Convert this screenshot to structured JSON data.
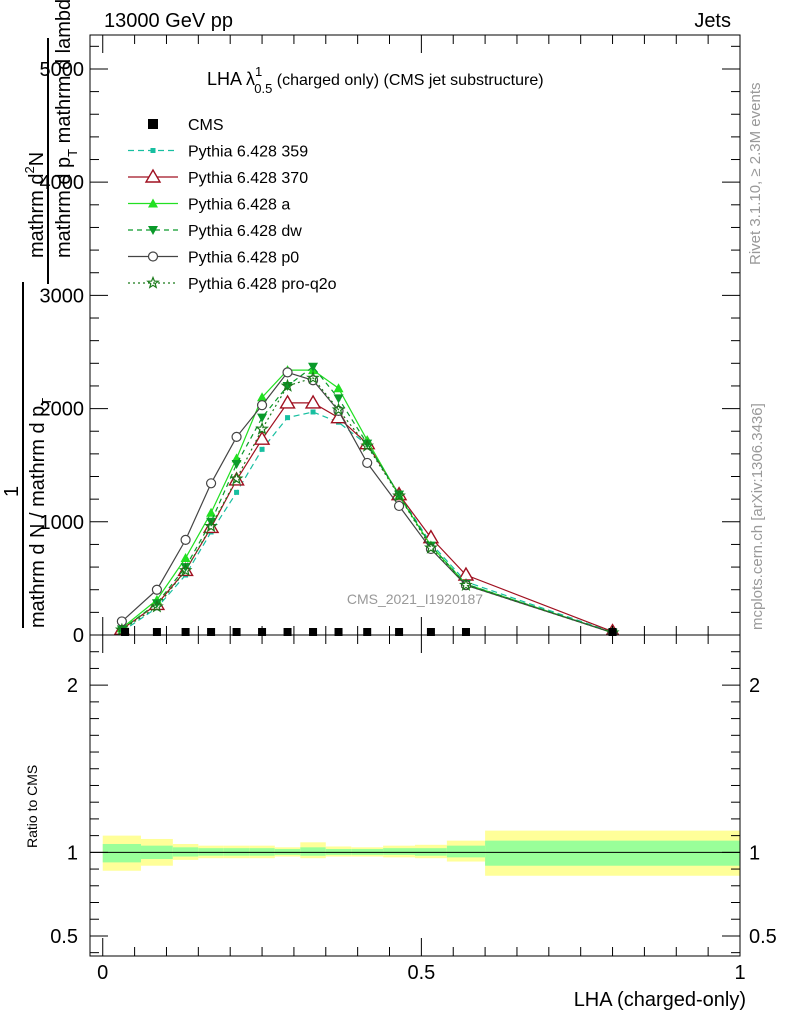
{
  "header": {
    "left": "13000 GeV pp",
    "right": "Jets"
  },
  "side_labels": {
    "rivet": "Rivet 3.1.10, ≥ 2.3M events",
    "mcplots": "mcplots.cern.ch [arXiv:1306.3436]"
  },
  "watermark": "CMS_2021_I1920187",
  "title": {
    "main": "LHA λ",
    "sup": "1",
    "sub": "0.5",
    "rest": " (charged only) (CMS jet substructure)"
  },
  "ylabel_main": {
    "top_num": "mathrm d",
    "top_num_sup": "2",
    "top_num_tail": "N",
    "top_den": "mathrm d p",
    "top_den_sub": "T",
    "top_den_tail": " mathrm d lambda",
    "bottom_num": "1",
    "bottom_den": "mathrm d N / mathrm d p",
    "bottom_den_sub": "T"
  },
  "ylabel_ratio": "Ratio to CMS",
  "xlabel": "LHA (charged-only)",
  "colors": {
    "cms": "#000000",
    "p359": "#17bfa0",
    "p370": "#a01020",
    "pa": "#22e022",
    "pdw": "#0a9a2a",
    "pp0": "#444444",
    "pq2o": "#1a7a1a",
    "band_inner": "#99ff99",
    "band_outer": "#ffff99"
  },
  "chart_data": {
    "type": "line",
    "main_ylim": [
      0,
      5300
    ],
    "main_yticks": [
      0,
      1000,
      2000,
      3000,
      4000,
      5000
    ],
    "main_yticklabels": [
      "0",
      "1000",
      "2000",
      "3000",
      "4000",
      "5000"
    ],
    "xlim": [
      -0.02,
      1.0
    ],
    "xticks": [
      0,
      0.5,
      1
    ],
    "xticklabels": [
      "0",
      "0.5",
      "1"
    ],
    "ratio_ylim": [
      0.38,
      2.3
    ],
    "ratio_yticks": [
      0.5,
      1,
      2
    ],
    "ratio_yticklabels": [
      "0.5",
      "1",
      "2"
    ],
    "cms_points": {
      "x": [
        0.035,
        0.085,
        0.13,
        0.17,
        0.21,
        0.25,
        0.29,
        0.33,
        0.37,
        0.415,
        0.465,
        0.515,
        0.57,
        0.8
      ],
      "y": [
        0,
        0,
        0,
        0,
        0,
        0,
        0,
        0,
        0,
        0,
        0,
        0,
        0,
        0
      ]
    },
    "series": [
      {
        "name": "CMS",
        "key": "cms",
        "style": "cms"
      },
      {
        "name": "Pythia 6.428 359",
        "key": "p359",
        "dash": "6,4",
        "marker": "square-small",
        "x": [
          0.03,
          0.085,
          0.13,
          0.17,
          0.21,
          0.25,
          0.29,
          0.33,
          0.37,
          0.415,
          0.465,
          0.515,
          0.57,
          0.8
        ],
        "y": [
          30,
          240,
          530,
          910,
          1260,
          1640,
          1920,
          1970,
          1880,
          1680,
          1240,
          810,
          470,
          25
        ]
      },
      {
        "name": "Pythia 6.428 370",
        "key": "p370",
        "dash": "",
        "marker": "triangle-open",
        "x": [
          0.03,
          0.085,
          0.13,
          0.17,
          0.21,
          0.25,
          0.29,
          0.33,
          0.37,
          0.415,
          0.465,
          0.515,
          0.57,
          0.8
        ],
        "y": [
          50,
          270,
          570,
          950,
          1370,
          1730,
          2050,
          2050,
          1920,
          1690,
          1240,
          860,
          530,
          30
        ]
      },
      {
        "name": "Pythia 6.428 a",
        "key": "pa",
        "dash": "",
        "marker": "triangle",
        "x": [
          0.03,
          0.085,
          0.13,
          0.17,
          0.21,
          0.25,
          0.29,
          0.33,
          0.37,
          0.415,
          0.465,
          0.515,
          0.57,
          0.8
        ],
        "y": [
          60,
          310,
          680,
          1080,
          1560,
          2100,
          2340,
          2340,
          2180,
          1720,
          1230,
          790,
          450,
          20
        ]
      },
      {
        "name": "Pythia 6.428 dw",
        "key": "pdw",
        "dash": "5,4",
        "marker": "triangle-down",
        "x": [
          0.03,
          0.085,
          0.13,
          0.17,
          0.21,
          0.25,
          0.29,
          0.33,
          0.37,
          0.415,
          0.465,
          0.515,
          0.57,
          0.8
        ],
        "y": [
          50,
          280,
          600,
          1000,
          1510,
          1920,
          2200,
          2370,
          2090,
          1690,
          1240,
          790,
          450,
          20
        ]
      },
      {
        "name": "Pythia 6.428 p0",
        "key": "pp0",
        "dash": "",
        "marker": "circle-open",
        "x": [
          0.03,
          0.085,
          0.13,
          0.17,
          0.21,
          0.25,
          0.29,
          0.33,
          0.37,
          0.415,
          0.465,
          0.515,
          0.57,
          0.8
        ],
        "y": [
          120,
          400,
          840,
          1340,
          1750,
          2030,
          2320,
          2250,
          1980,
          1520,
          1140,
          760,
          440,
          20
        ]
      },
      {
        "name": "Pythia 6.428 pro-q2o",
        "key": "pq2o",
        "dash": "2,3",
        "marker": "star",
        "x": [
          0.03,
          0.085,
          0.13,
          0.17,
          0.21,
          0.25,
          0.29,
          0.33,
          0.37,
          0.415,
          0.465,
          0.515,
          0.57,
          0.8
        ],
        "y": [
          45,
          250,
          570,
          960,
          1380,
          1820,
          2200,
          2270,
          1990,
          1670,
          1230,
          770,
          440,
          20
        ]
      }
    ],
    "ratio_bands": [
      {
        "x0": 0.0,
        "x1": 0.06,
        "inner": [
          0.94,
          1.05
        ],
        "outer": [
          0.89,
          1.1
        ]
      },
      {
        "x0": 0.06,
        "x1": 0.11,
        "inner": [
          0.96,
          1.04
        ],
        "outer": [
          0.92,
          1.08
        ]
      },
      {
        "x0": 0.11,
        "x1": 0.15,
        "inner": [
          0.975,
          1.03
        ],
        "outer": [
          0.955,
          1.05
        ]
      },
      {
        "x0": 0.15,
        "x1": 0.19,
        "inner": [
          0.98,
          1.025
        ],
        "outer": [
          0.965,
          1.04
        ]
      },
      {
        "x0": 0.19,
        "x1": 0.23,
        "inner": [
          0.98,
          1.025
        ],
        "outer": [
          0.965,
          1.04
        ]
      },
      {
        "x0": 0.23,
        "x1": 0.27,
        "inner": [
          0.98,
          1.025
        ],
        "outer": [
          0.965,
          1.04
        ]
      },
      {
        "x0": 0.27,
        "x1": 0.31,
        "inner": [
          0.985,
          1.02
        ],
        "outer": [
          0.975,
          1.03
        ]
      },
      {
        "x0": 0.31,
        "x1": 0.35,
        "inner": [
          0.98,
          1.03
        ],
        "outer": [
          0.965,
          1.06
        ]
      },
      {
        "x0": 0.35,
        "x1": 0.39,
        "inner": [
          0.985,
          1.02
        ],
        "outer": [
          0.975,
          1.035
        ]
      },
      {
        "x0": 0.39,
        "x1": 0.44,
        "inner": [
          0.985,
          1.02
        ],
        "outer": [
          0.975,
          1.03
        ]
      },
      {
        "x0": 0.44,
        "x1": 0.49,
        "inner": [
          0.985,
          1.025
        ],
        "outer": [
          0.97,
          1.04
        ]
      },
      {
        "x0": 0.49,
        "x1": 0.54,
        "inner": [
          0.98,
          1.025
        ],
        "outer": [
          0.965,
          1.045
        ]
      },
      {
        "x0": 0.54,
        "x1": 0.6,
        "inner": [
          0.97,
          1.04
        ],
        "outer": [
          0.945,
          1.07
        ]
      },
      {
        "x0": 0.6,
        "x1": 1.0,
        "inner": [
          0.92,
          1.07
        ],
        "outer": [
          0.86,
          1.13
        ]
      }
    ]
  }
}
